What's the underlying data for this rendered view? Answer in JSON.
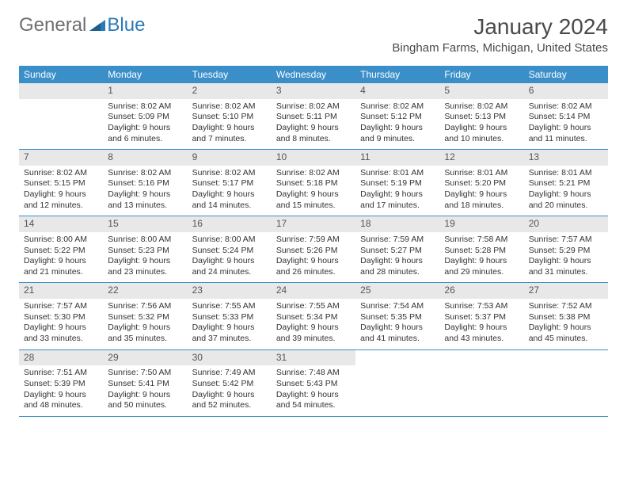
{
  "logo": {
    "text_general": "General",
    "text_blue": "Blue",
    "triangle_color": "#2a7ab8"
  },
  "header": {
    "month_title": "January 2024",
    "location": "Bingham Farms, Michigan, United States"
  },
  "colors": {
    "header_bar": "#3b8fc9",
    "header_text": "#ffffff",
    "daynum_bg": "#e8e8e8",
    "border": "#3b8fc9",
    "body_text": "#333333"
  },
  "day_names": [
    "Sunday",
    "Monday",
    "Tuesday",
    "Wednesday",
    "Thursday",
    "Friday",
    "Saturday"
  ],
  "weeks": [
    [
      {
        "num": "",
        "lines": []
      },
      {
        "num": "1",
        "lines": [
          "Sunrise: 8:02 AM",
          "Sunset: 5:09 PM",
          "Daylight: 9 hours",
          "and 6 minutes."
        ]
      },
      {
        "num": "2",
        "lines": [
          "Sunrise: 8:02 AM",
          "Sunset: 5:10 PM",
          "Daylight: 9 hours",
          "and 7 minutes."
        ]
      },
      {
        "num": "3",
        "lines": [
          "Sunrise: 8:02 AM",
          "Sunset: 5:11 PM",
          "Daylight: 9 hours",
          "and 8 minutes."
        ]
      },
      {
        "num": "4",
        "lines": [
          "Sunrise: 8:02 AM",
          "Sunset: 5:12 PM",
          "Daylight: 9 hours",
          "and 9 minutes."
        ]
      },
      {
        "num": "5",
        "lines": [
          "Sunrise: 8:02 AM",
          "Sunset: 5:13 PM",
          "Daylight: 9 hours",
          "and 10 minutes."
        ]
      },
      {
        "num": "6",
        "lines": [
          "Sunrise: 8:02 AM",
          "Sunset: 5:14 PM",
          "Daylight: 9 hours",
          "and 11 minutes."
        ]
      }
    ],
    [
      {
        "num": "7",
        "lines": [
          "Sunrise: 8:02 AM",
          "Sunset: 5:15 PM",
          "Daylight: 9 hours",
          "and 12 minutes."
        ]
      },
      {
        "num": "8",
        "lines": [
          "Sunrise: 8:02 AM",
          "Sunset: 5:16 PM",
          "Daylight: 9 hours",
          "and 13 minutes."
        ]
      },
      {
        "num": "9",
        "lines": [
          "Sunrise: 8:02 AM",
          "Sunset: 5:17 PM",
          "Daylight: 9 hours",
          "and 14 minutes."
        ]
      },
      {
        "num": "10",
        "lines": [
          "Sunrise: 8:02 AM",
          "Sunset: 5:18 PM",
          "Daylight: 9 hours",
          "and 15 minutes."
        ]
      },
      {
        "num": "11",
        "lines": [
          "Sunrise: 8:01 AM",
          "Sunset: 5:19 PM",
          "Daylight: 9 hours",
          "and 17 minutes."
        ]
      },
      {
        "num": "12",
        "lines": [
          "Sunrise: 8:01 AM",
          "Sunset: 5:20 PM",
          "Daylight: 9 hours",
          "and 18 minutes."
        ]
      },
      {
        "num": "13",
        "lines": [
          "Sunrise: 8:01 AM",
          "Sunset: 5:21 PM",
          "Daylight: 9 hours",
          "and 20 minutes."
        ]
      }
    ],
    [
      {
        "num": "14",
        "lines": [
          "Sunrise: 8:00 AM",
          "Sunset: 5:22 PM",
          "Daylight: 9 hours",
          "and 21 minutes."
        ]
      },
      {
        "num": "15",
        "lines": [
          "Sunrise: 8:00 AM",
          "Sunset: 5:23 PM",
          "Daylight: 9 hours",
          "and 23 minutes."
        ]
      },
      {
        "num": "16",
        "lines": [
          "Sunrise: 8:00 AM",
          "Sunset: 5:24 PM",
          "Daylight: 9 hours",
          "and 24 minutes."
        ]
      },
      {
        "num": "17",
        "lines": [
          "Sunrise: 7:59 AM",
          "Sunset: 5:26 PM",
          "Daylight: 9 hours",
          "and 26 minutes."
        ]
      },
      {
        "num": "18",
        "lines": [
          "Sunrise: 7:59 AM",
          "Sunset: 5:27 PM",
          "Daylight: 9 hours",
          "and 28 minutes."
        ]
      },
      {
        "num": "19",
        "lines": [
          "Sunrise: 7:58 AM",
          "Sunset: 5:28 PM",
          "Daylight: 9 hours",
          "and 29 minutes."
        ]
      },
      {
        "num": "20",
        "lines": [
          "Sunrise: 7:57 AM",
          "Sunset: 5:29 PM",
          "Daylight: 9 hours",
          "and 31 minutes."
        ]
      }
    ],
    [
      {
        "num": "21",
        "lines": [
          "Sunrise: 7:57 AM",
          "Sunset: 5:30 PM",
          "Daylight: 9 hours",
          "and 33 minutes."
        ]
      },
      {
        "num": "22",
        "lines": [
          "Sunrise: 7:56 AM",
          "Sunset: 5:32 PM",
          "Daylight: 9 hours",
          "and 35 minutes."
        ]
      },
      {
        "num": "23",
        "lines": [
          "Sunrise: 7:55 AM",
          "Sunset: 5:33 PM",
          "Daylight: 9 hours",
          "and 37 minutes."
        ]
      },
      {
        "num": "24",
        "lines": [
          "Sunrise: 7:55 AM",
          "Sunset: 5:34 PM",
          "Daylight: 9 hours",
          "and 39 minutes."
        ]
      },
      {
        "num": "25",
        "lines": [
          "Sunrise: 7:54 AM",
          "Sunset: 5:35 PM",
          "Daylight: 9 hours",
          "and 41 minutes."
        ]
      },
      {
        "num": "26",
        "lines": [
          "Sunrise: 7:53 AM",
          "Sunset: 5:37 PM",
          "Daylight: 9 hours",
          "and 43 minutes."
        ]
      },
      {
        "num": "27",
        "lines": [
          "Sunrise: 7:52 AM",
          "Sunset: 5:38 PM",
          "Daylight: 9 hours",
          "and 45 minutes."
        ]
      }
    ],
    [
      {
        "num": "28",
        "lines": [
          "Sunrise: 7:51 AM",
          "Sunset: 5:39 PM",
          "Daylight: 9 hours",
          "and 48 minutes."
        ]
      },
      {
        "num": "29",
        "lines": [
          "Sunrise: 7:50 AM",
          "Sunset: 5:41 PM",
          "Daylight: 9 hours",
          "and 50 minutes."
        ]
      },
      {
        "num": "30",
        "lines": [
          "Sunrise: 7:49 AM",
          "Sunset: 5:42 PM",
          "Daylight: 9 hours",
          "and 52 minutes."
        ]
      },
      {
        "num": "31",
        "lines": [
          "Sunrise: 7:48 AM",
          "Sunset: 5:43 PM",
          "Daylight: 9 hours",
          "and 54 minutes."
        ]
      },
      {
        "num": "",
        "lines": []
      },
      {
        "num": "",
        "lines": []
      },
      {
        "num": "",
        "lines": []
      }
    ]
  ]
}
